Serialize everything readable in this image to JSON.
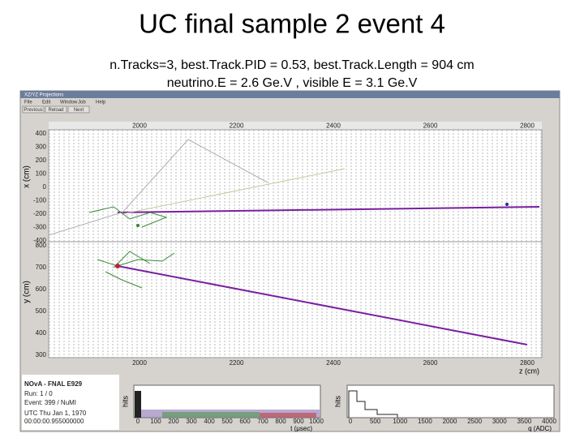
{
  "title": "UC final sample 2 event 4",
  "subtitle_lines": [
    "n.Tracks=3, best.Track.PID = 0.53, best.Track.Length = 904 cm",
    "neutrino.E = 2.6 Ge.V , visible E = 3.1 Ge.V"
  ],
  "window": {
    "title": "XZ/YZ Projections",
    "menu": [
      "File",
      "Edit",
      "Window",
      "Job",
      "Help"
    ],
    "buttons": [
      "Previous",
      "Reload",
      "Next"
    ]
  },
  "xz_view": {
    "x_ticks": [
      "2000",
      "2200",
      "2400",
      "2600",
      "2800"
    ],
    "y_label": "x (cm)",
    "y_ticks": [
      "400",
      "300",
      "200",
      "100",
      "0",
      "-100",
      "-200",
      "-300",
      "-400"
    ]
  },
  "yz_view": {
    "x_ticks": [
      "2000",
      "2200",
      "2400",
      "2600",
      "2800"
    ],
    "x_label": "z (cm)",
    "y_label": "y (cm)",
    "y_ticks": [
      "800",
      "700",
      "600",
      "500",
      "400",
      "300"
    ]
  },
  "info": {
    "experiment": "NOvA - FNAL E929",
    "run": "Run: 1 / 0",
    "event": "Event: 399 / NuMI",
    "date": "UTC Thu Jan 1, 1970",
    "time": "00:00:00.955000000"
  },
  "time_hist": {
    "y_label": "hits",
    "x_label": "t (μsec)",
    "x_ticks": [
      "0",
      "100",
      "200",
      "300",
      "400",
      "500",
      "600",
      "700",
      "800",
      "900",
      "1000"
    ]
  },
  "charge_hist": {
    "y_label": "hits",
    "x_label": "q (ADC)",
    "x_ticks": [
      "0",
      "500",
      "1000",
      "1500",
      "2000",
      "2500",
      "3000",
      "3500",
      "4000"
    ]
  }
}
